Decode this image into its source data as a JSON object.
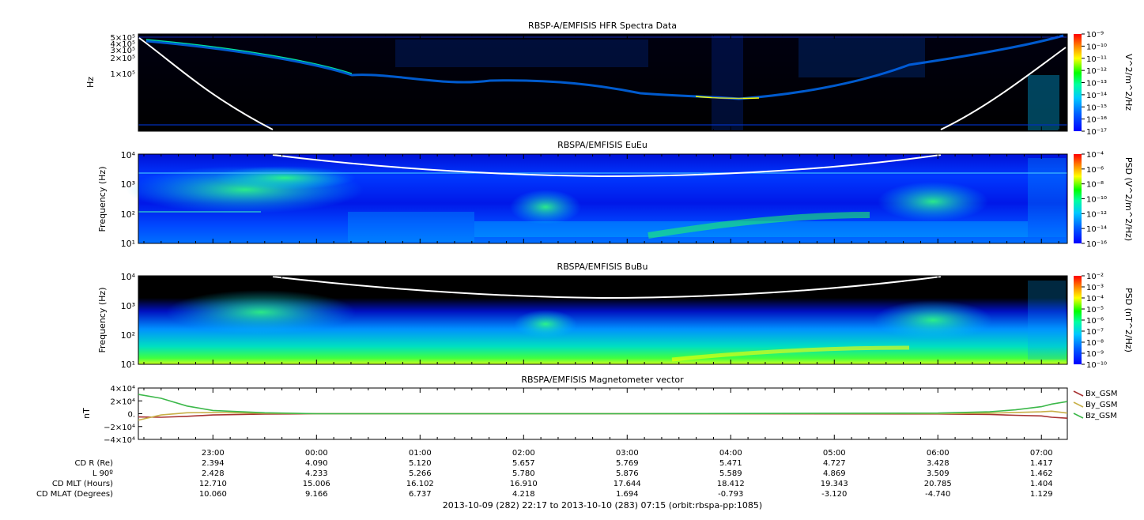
{
  "colors": {
    "frame": "#000000",
    "trace_line": "#ffffff",
    "bx": "#a83232",
    "by": "#c8b048",
    "bz": "#3cb84a",
    "colorbar": [
      "#0000ff",
      "#0060ff",
      "#00c0ff",
      "#00ffa0",
      "#00ff00",
      "#ffff00",
      "#ff8000",
      "#ff0000"
    ]
  },
  "chart_data": [
    {
      "type": "heatmap",
      "title": "RBSP-A/EMFISIS  HFR Spectra Data",
      "ylabel": "Hz",
      "y_scale": "log",
      "y_tick_labels": [
        "5×10⁵",
        "4×10⁵",
        "3×10⁵",
        "2×10⁵",
        "1×10⁵"
      ],
      "colorbar_label": "V^2/m^2/Hz",
      "colorbar_scale": "log",
      "colorbar_ticks": [
        "10⁻⁹",
        "10⁻¹⁰",
        "10⁻¹¹",
        "10⁻¹²",
        "10⁻¹³",
        "10⁻¹⁴",
        "10⁻¹⁵",
        "10⁻¹⁶",
        "10⁻¹⁷"
      ]
    },
    {
      "type": "heatmap",
      "title": "RBSPA/EMFISIS  EuEu",
      "ylabel": "Frequency (Hz)",
      "y_scale": "log",
      "ylim": [
        10,
        10000
      ],
      "y_tick_labels": [
        "10⁴",
        "10³",
        "10²",
        "10¹"
      ],
      "colorbar_label": "PSD (V^2/m^2/Hz)",
      "colorbar_scale": "log",
      "colorbar_ticks": [
        "10⁻⁴",
        "10⁻⁶",
        "10⁻⁸",
        "10⁻¹⁰",
        "10⁻¹²",
        "10⁻¹⁴",
        "10⁻¹⁶"
      ]
    },
    {
      "type": "heatmap",
      "title": "RBSPA/EMFISIS  BuBu",
      "ylabel": "Frequency (Hz)",
      "y_scale": "log",
      "ylim": [
        10,
        10000
      ],
      "y_tick_labels": [
        "10⁴",
        "10³",
        "10²",
        "10¹"
      ],
      "colorbar_label": "PSD (nT^2/Hz)",
      "colorbar_scale": "log",
      "colorbar_ticks": [
        "10⁻²",
        "10⁻³",
        "10⁻⁴",
        "10⁻⁵",
        "10⁻⁶",
        "10⁻⁷",
        "10⁻⁸",
        "10⁻⁹",
        "10⁻¹⁰"
      ]
    },
    {
      "type": "line",
      "title": "RBSPA/EMFISIS  Magnetometer vector",
      "ylabel": "nT",
      "ylim": [
        -40000,
        40000
      ],
      "y_tick_labels": [
        "4×10⁴",
        "2×10⁴",
        "0.",
        "−2×10⁴",
        "−4×10⁴"
      ],
      "x_hours": [
        22.28,
        22.5,
        22.75,
        23.0,
        23.5,
        24.0,
        27.0,
        30.0,
        30.5,
        30.75,
        31.0,
        31.1,
        31.25
      ],
      "series": [
        {
          "name": "Bx_GSM",
          "values": [
            -5000,
            -5500,
            -4000,
            -2000,
            -600,
            0,
            0,
            -400,
            -1200,
            -2500,
            -3500,
            -5500,
            -7000
          ]
        },
        {
          "name": "By_GSM",
          "values": [
            -10000,
            -2000,
            1500,
            1800,
            800,
            0,
            0,
            300,
            900,
            2000,
            3000,
            4000,
            1000
          ]
        },
        {
          "name": "Bz_GSM",
          "values": [
            30000,
            24000,
            12000,
            5000,
            1500,
            0,
            0,
            1000,
            3000,
            6000,
            11000,
            15000,
            19000
          ]
        }
      ]
    }
  ],
  "x_axis": {
    "tick_labels": [
      "23:00",
      "00:00",
      "01:00",
      "02:00",
      "03:00",
      "04:00",
      "05:00",
      "06:00",
      "07:00"
    ]
  },
  "ephemeris": {
    "row_labels": [
      "CD R (Re)",
      "L 90º",
      "CD MLT (Hours)",
      "CD MLAT (Degrees)"
    ],
    "rows": [
      [
        "2.394",
        "4.090",
        "5.120",
        "5.657",
        "5.769",
        "5.471",
        "4.727",
        "3.428",
        "1.417"
      ],
      [
        "2.428",
        "4.233",
        "5.266",
        "5.780",
        "5.876",
        "5.589",
        "4.869",
        "3.509",
        "1.462"
      ],
      [
        "12.710",
        "15.006",
        "16.102",
        "16.910",
        "17.644",
        "18.412",
        "19.343",
        "20.785",
        "1.404"
      ],
      [
        "10.060",
        "9.166",
        "6.737",
        "4.218",
        "1.694",
        "-0.793",
        "-3.120",
        "-4.740",
        "1.129"
      ]
    ]
  },
  "footer": "2013-10-09 (282) 22:17 to 2013-10-10 (283) 07:15 (orbit:rbspa-pp:1085)"
}
